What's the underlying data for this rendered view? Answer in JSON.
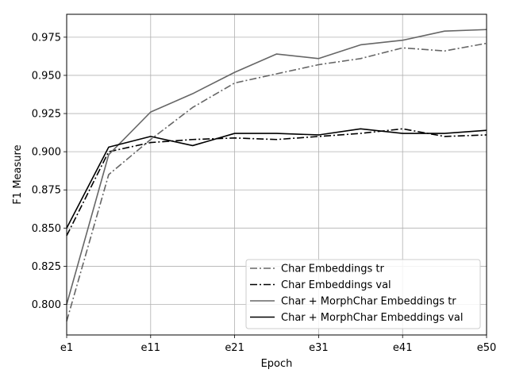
{
  "chart_data": {
    "type": "line",
    "xlabel": "Epoch",
    "ylabel": "F1 Measure",
    "x": [
      0,
      5,
      10,
      15,
      20,
      25,
      30,
      35,
      40,
      45,
      50
    ],
    "x_ticks": [
      {
        "value": 0,
        "label": "e1"
      },
      {
        "value": 10,
        "label": "e11"
      },
      {
        "value": 20,
        "label": "e21"
      },
      {
        "value": 30,
        "label": "e31"
      },
      {
        "value": 40,
        "label": "e41"
      },
      {
        "value": 50,
        "label": "e50"
      }
    ],
    "xlim": [
      0,
      50
    ],
    "ylim": [
      0.78,
      0.99
    ],
    "y_ticks": [
      0.8,
      0.825,
      0.85,
      0.875,
      0.9,
      0.925,
      0.95,
      0.975
    ],
    "y_tick_labels": [
      "0.800",
      "0.825",
      "0.850",
      "0.875",
      "0.900",
      "0.925",
      "0.950",
      "0.975"
    ],
    "grid": true,
    "legend_position": "lower-right",
    "series": [
      {
        "name": "Char Embeddings tr",
        "color": "#666666",
        "dash": "dashdot",
        "values": [
          0.789,
          0.885,
          0.908,
          0.929,
          0.945,
          0.951,
          0.957,
          0.961,
          0.968,
          0.966,
          0.971
        ]
      },
      {
        "name": "Char Embeddings val",
        "color": "#000000",
        "dash": "dashdot",
        "values": [
          0.845,
          0.9,
          0.906,
          0.908,
          0.909,
          0.908,
          0.91,
          0.912,
          0.915,
          0.91,
          0.911
        ]
      },
      {
        "name": "Char + MorphChar Embeddings tr",
        "color": "#666666",
        "dash": "solid",
        "values": [
          0.8,
          0.898,
          0.926,
          0.938,
          0.952,
          0.964,
          0.961,
          0.97,
          0.973,
          0.979,
          0.98
        ]
      },
      {
        "name": "Char + MorphChar Embeddings val",
        "color": "#000000",
        "dash": "solid",
        "values": [
          0.85,
          0.903,
          0.91,
          0.904,
          0.912,
          0.912,
          0.911,
          0.915,
          0.912,
          0.912,
          0.914
        ]
      }
    ]
  }
}
